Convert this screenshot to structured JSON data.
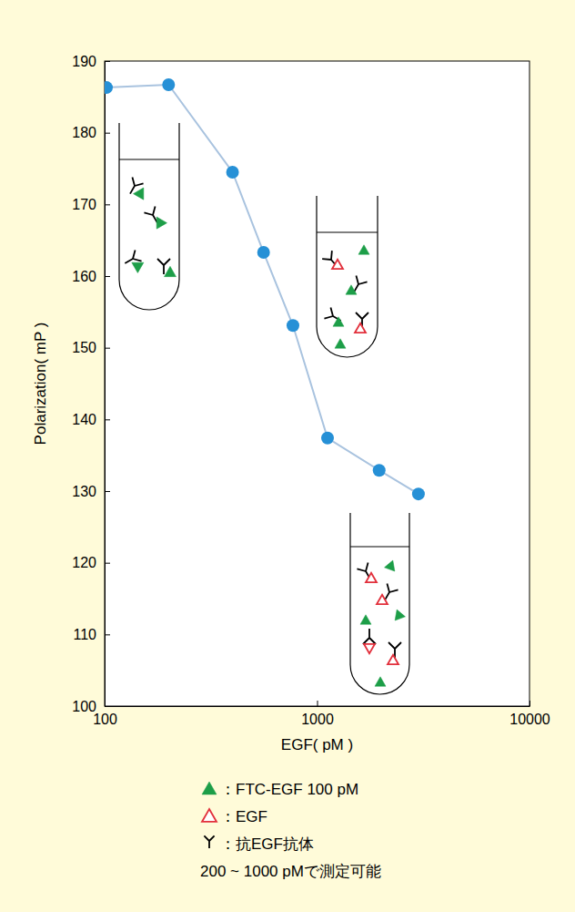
{
  "chart_data": {
    "type": "line",
    "x_label": "EGF( pM )",
    "y_label": "Polarization( mP )",
    "x": [
      102,
      200,
      400,
      560,
      770,
      1120,
      1960,
      3000
    ],
    "values": [
      186.3,
      186.7,
      174.5,
      163.3,
      153.1,
      137.4,
      132.9,
      129.6
    ],
    "color": "#a9c3df",
    "marker": "circle",
    "log": "x",
    "grid": false,
    "xlim": [
      100,
      10000
    ],
    "xticks": [
      100,
      1000,
      10000
    ],
    "ylim": [
      100,
      190
    ],
    "yticks": [
      100,
      110,
      120,
      130,
      140,
      150,
      160,
      170,
      180,
      190
    ],
    "legend_items": [
      {
        "label": "：FTC-EGF 100 pM",
        "color": "#1d9e48",
        "marker": "triangle"
      },
      {
        "label": "：EGF",
        "color": "#e2303c",
        "marker": "triangle-open"
      },
      {
        "label": "：抗EGF抗体",
        "color": "#000000",
        "marker": "y"
      }
    ],
    "note": "200 ~ 1000 pMで測定可能"
  }
}
